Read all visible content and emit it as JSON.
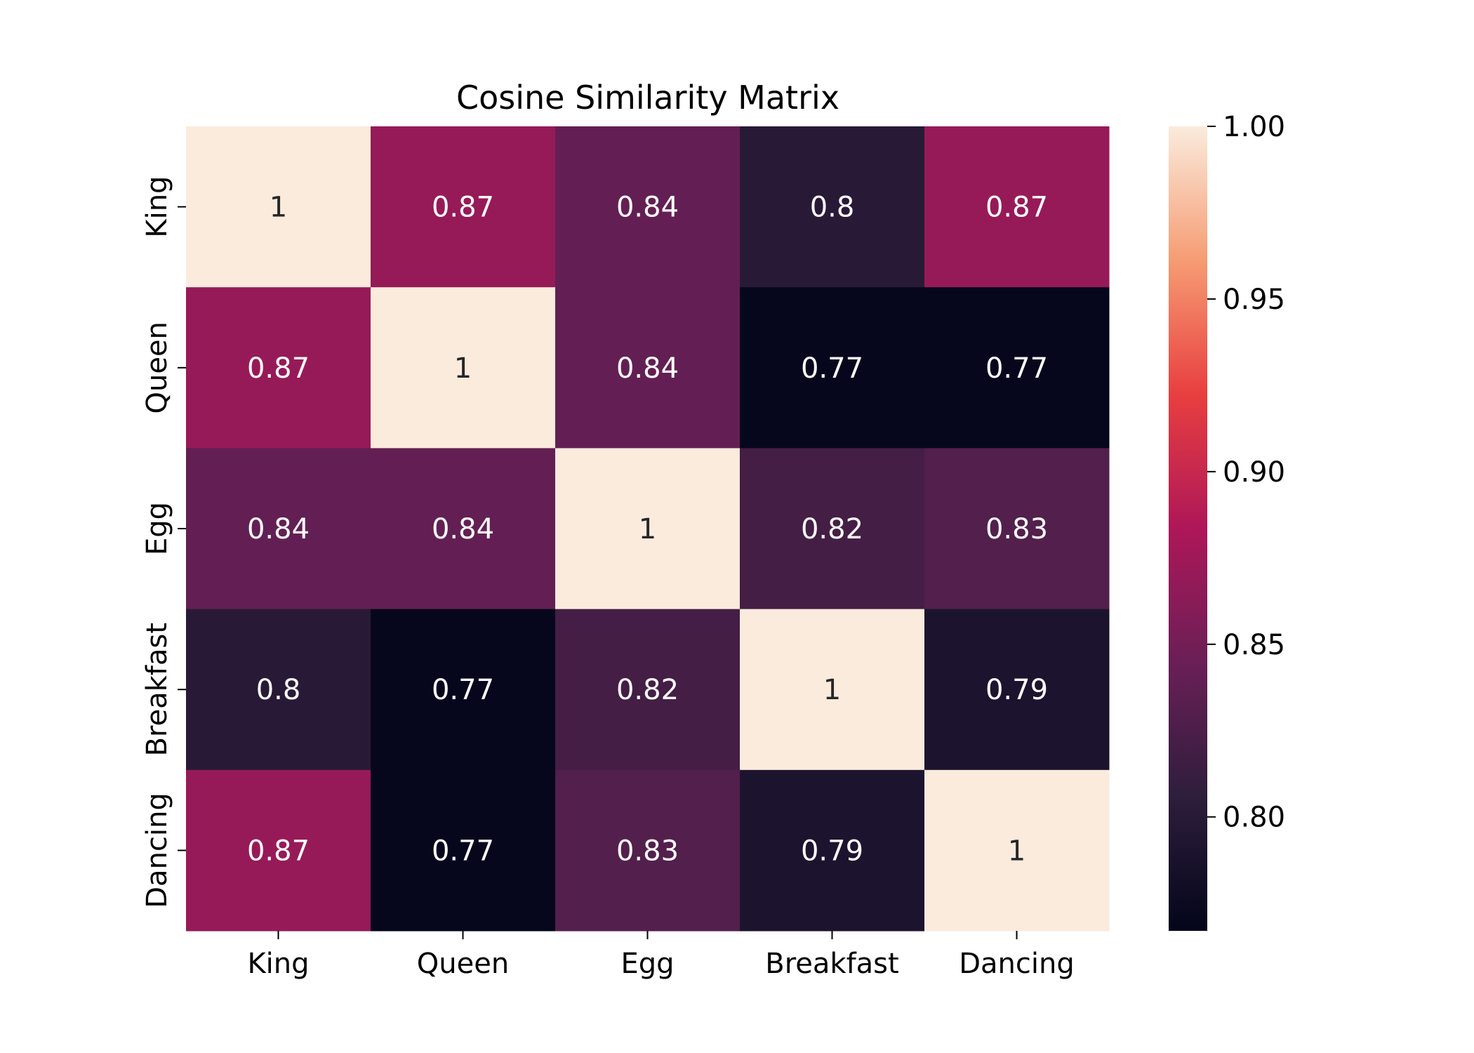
{
  "chart_data": {
    "type": "heatmap",
    "title": "Cosine Similarity Matrix",
    "x_categories": [
      "King",
      "Queen",
      "Egg",
      "Breakfast",
      "Dancing"
    ],
    "y_categories": [
      "King",
      "Queen",
      "Egg",
      "Breakfast",
      "Dancing"
    ],
    "values": [
      [
        1.0,
        0.87,
        0.84,
        0.8,
        0.87
      ],
      [
        0.87,
        1.0,
        0.84,
        0.77,
        0.77
      ],
      [
        0.84,
        0.84,
        1.0,
        0.82,
        0.83
      ],
      [
        0.8,
        0.77,
        0.82,
        1.0,
        0.79
      ],
      [
        0.87,
        0.77,
        0.83,
        0.79,
        1.0
      ]
    ],
    "annotations": [
      [
        "1",
        "0.87",
        "0.84",
        "0.8",
        "0.87"
      ],
      [
        "0.87",
        "1",
        "0.84",
        "0.77",
        "0.77"
      ],
      [
        "0.84",
        "0.84",
        "1",
        "0.82",
        "0.83"
      ],
      [
        "0.8",
        "0.77",
        "0.82",
        "1",
        "0.79"
      ],
      [
        "0.87",
        "0.77",
        "0.83",
        "0.79",
        "1"
      ]
    ],
    "colorbar": {
      "vmin": 0.767,
      "vmax": 1.0,
      "ticks": [
        1.0,
        0.95,
        0.9,
        0.85,
        0.8
      ],
      "tick_labels": [
        "1.00",
        "0.95",
        "0.90",
        "0.85",
        "0.80"
      ]
    },
    "colormap": "rocket",
    "colormap_stops": [
      "#03051a",
      "#2e1e3c",
      "#6a1f56",
      "#ae1759",
      "#e83f3f",
      "#f69c73",
      "#faebdd"
    ],
    "xlabel": "",
    "ylabel": "",
    "grid": false
  }
}
